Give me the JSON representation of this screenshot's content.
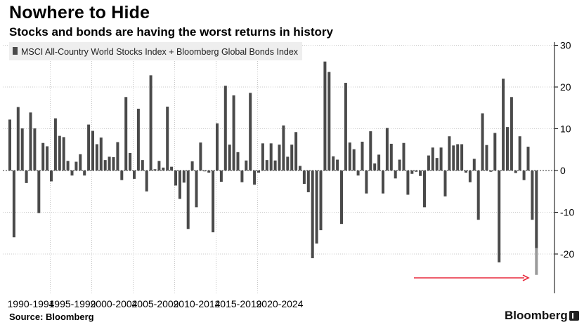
{
  "title": "Nowhere to Hide",
  "subtitle": "Stocks and bonds are having the worst returns in history",
  "source": "Source: Bloomberg",
  "brand": "Bloomberg",
  "colors": {
    "bar": "#4a4a4a",
    "ytd": "#9a9a9a",
    "arrow": "#e8283b",
    "grid": "#c8c8c8",
    "legend_bg": "#eeeeee"
  },
  "chart_data": {
    "type": "bar",
    "legend": [
      "MSCI All-Country World Stocks Index + Bloomberg Global Bonds Index"
    ],
    "legend_position": "top-left",
    "ylim": [
      -27,
      31
    ],
    "yticks": [
      "30",
      "20",
      "10",
      "0",
      "-10",
      "-20"
    ],
    "ytick_values": [
      30,
      20,
      10,
      0,
      -10,
      -20
    ],
    "y_axis_side": "right",
    "grid": "vertical dotted at period boundaries, horizontal at tick values",
    "periods": [
      "1990-1994",
      "1995-1999",
      "2000-2004",
      "2005-2009",
      "2010-2014",
      "2015-2019",
      "2020-2024"
    ],
    "series": [
      {
        "bars_per_year": 2,
        "values": [
          12.2,
          -16.0,
          15.2,
          10.1,
          -3.0,
          13.9,
          10.1,
          -10.2,
          6.6,
          5.8,
          -2.6,
          12.5,
          8.3,
          8.0,
          2.3,
          -1.2,
          2.1,
          3.9,
          -1.2,
          11.0,
          9.5,
          6.3,
          7.9,
          2.5,
          3.3,
          3.2,
          6.8,
          -2.3,
          17.6,
          4.2,
          -2.0,
          14.8,
          2.5,
          -5.0,
          22.8,
          0.3,
          2.3,
          0.7,
          15.3,
          0.9,
          -3.6,
          -6.8,
          -2.9,
          -14.0,
          2.2,
          -8.8,
          6.7,
          -0.2,
          -0.5,
          -14.8,
          11.3,
          -2.7,
          20.3,
          6.2,
          18.0,
          4.4,
          -2.8,
          2.4,
          18.6,
          -3.4,
          -0.5,
          6.5,
          2.5,
          6.5,
          2.4,
          6.2,
          10.8,
          3.3,
          6.2,
          9.2,
          1.1,
          -3.2,
          -5.2,
          -21.0,
          -17.5,
          -14.3,
          26.1,
          23.6,
          3.4,
          2.6,
          -12.8,
          21.0,
          6.7,
          5.1,
          -1.2,
          6.9,
          -5.5,
          9.4,
          1.7,
          3.8,
          -5.5,
          10.2,
          6.4,
          -1.9,
          2.6,
          6.6,
          -5.8,
          -0.8,
          -0.3,
          -1.3,
          -8.8,
          3.6,
          5.5,
          3.0,
          5.5,
          -6.2,
          8.2,
          6.0,
          6.3,
          6.3,
          -0.5,
          -2.8,
          2.8,
          -11.8,
          13.7,
          6.1,
          -0.3,
          9.0,
          -22.0,
          22.0,
          10.4,
          17.6,
          -0.6,
          8.2,
          -2.3,
          5.7,
          -11.8,
          -18.6
        ],
        "ytd_extension": [
          -18.6,
          -25.0
        ]
      }
    ],
    "annotations": [
      {
        "type": "arrow",
        "direction": "right",
        "from_x": 2015.5,
        "to_x": 2022.8,
        "y": -25.5
      }
    ]
  }
}
